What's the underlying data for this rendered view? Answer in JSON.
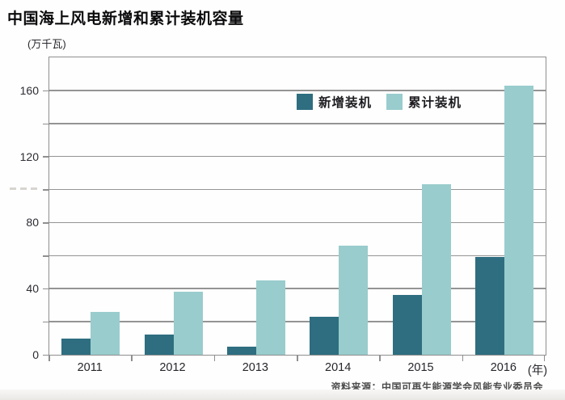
{
  "title": "中国海上风电新增和累计装机容量",
  "y_unit_label": "(万千瓦)",
  "x_unit_label": "(年)",
  "source": "资料来源：中国可再生能源学会风能专业委员会",
  "colors": {
    "new_installed": "#2e6e80",
    "cumulative": "#99cccd",
    "gridline": "#949494",
    "frame": "#8f8f8f"
  },
  "chart_data": {
    "type": "bar",
    "title": "中国海上风电新增和累计装机容量",
    "ylabel": "(万千瓦)",
    "xlabel": "(年)",
    "categories": [
      "2011",
      "2012",
      "2013",
      "2014",
      "2015",
      "2016"
    ],
    "series": [
      {
        "name": "新增装机",
        "color": "#2e6e80",
        "values": [
          10,
          12,
          5,
          23,
          36,
          59
        ]
      },
      {
        "name": "累计装机",
        "color": "#99cccd",
        "values": [
          26,
          38,
          45,
          66,
          103,
          163
        ]
      }
    ],
    "ylim": [
      0,
      180
    ],
    "ytick_step": 20,
    "ylabel_step": 40,
    "ylabel_values": [
      0,
      40,
      80,
      120,
      160
    ],
    "grid": true,
    "legend_position": "top-inside"
  }
}
